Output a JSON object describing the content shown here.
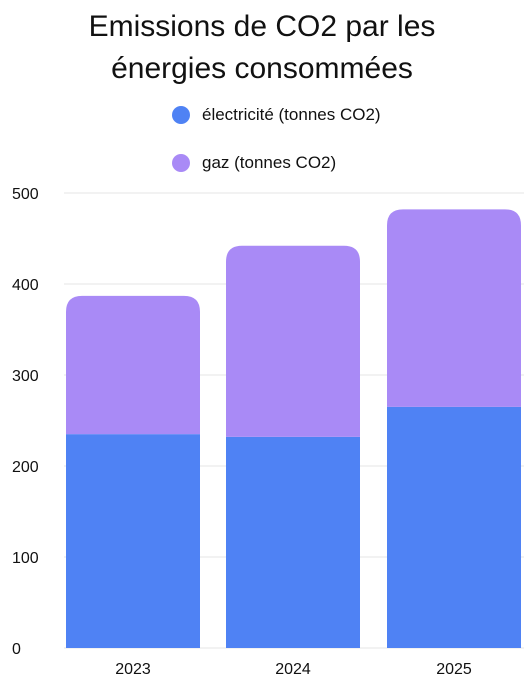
{
  "chart_data": {
    "type": "bar",
    "stacked": true,
    "title_lines": [
      "Emissions de CO2 par les",
      "énergies consommées"
    ],
    "categories": [
      "2023",
      "2024",
      "2025"
    ],
    "series": [
      {
        "name": "électricité (tonnes CO2)",
        "color": "#4f82f4",
        "values": [
          235,
          232,
          265
        ]
      },
      {
        "name": "gaz (tonnes CO2)",
        "color": "#a98af6",
        "values": [
          152,
          210,
          217
        ]
      }
    ],
    "ylim": [
      0,
      500
    ],
    "yticks": [
      "0",
      "100",
      "200",
      "300",
      "400",
      "500"
    ],
    "xlabel": "",
    "ylabel": "",
    "legend_position": "top",
    "grid": true
  }
}
